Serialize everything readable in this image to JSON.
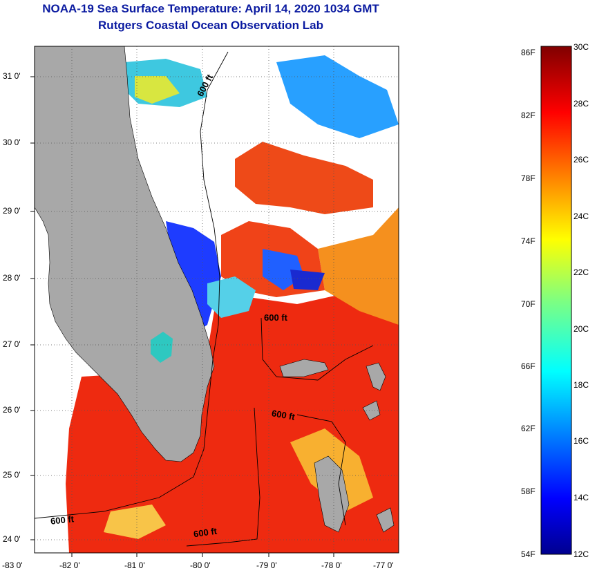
{
  "header": {
    "title": "NOAA-19 Sea Surface Temperature:  April 14, 2020 1034 GMT",
    "subtitle": "Rutgers Coastal Ocean Observation Lab"
  },
  "map": {
    "lat_labels": [
      "31 0'",
      "30 0'",
      "29 0'",
      "28 0'",
      "27 0'",
      "26 0'",
      "25 0'",
      "24 0'"
    ],
    "lon_labels": [
      "-83 0'",
      "-82 0'",
      "-81 0'",
      "-80 0'",
      "-79 0'",
      "-78 0'",
      "-77 0'"
    ],
    "isobath_labels": [
      "600 ft",
      "600 ft",
      "600 ft",
      "600 ft",
      "600 ft"
    ],
    "colors": {
      "land": "#a8a8a8",
      "cloud": "#ffffff",
      "warm_water": "#ee2a10",
      "cool_water": "#1e3cff"
    }
  },
  "colorbar": {
    "fahrenheit_labels": [
      "86F",
      "82F",
      "78F",
      "74F",
      "70F",
      "66F",
      "62F",
      "58F",
      "54F"
    ],
    "celsius_labels": [
      "30C",
      "28C",
      "26C",
      "24C",
      "22C",
      "20C",
      "18C",
      "16C",
      "14C",
      "12C"
    ],
    "range_f": [
      54,
      86
    ],
    "range_c": [
      12,
      30
    ]
  }
}
